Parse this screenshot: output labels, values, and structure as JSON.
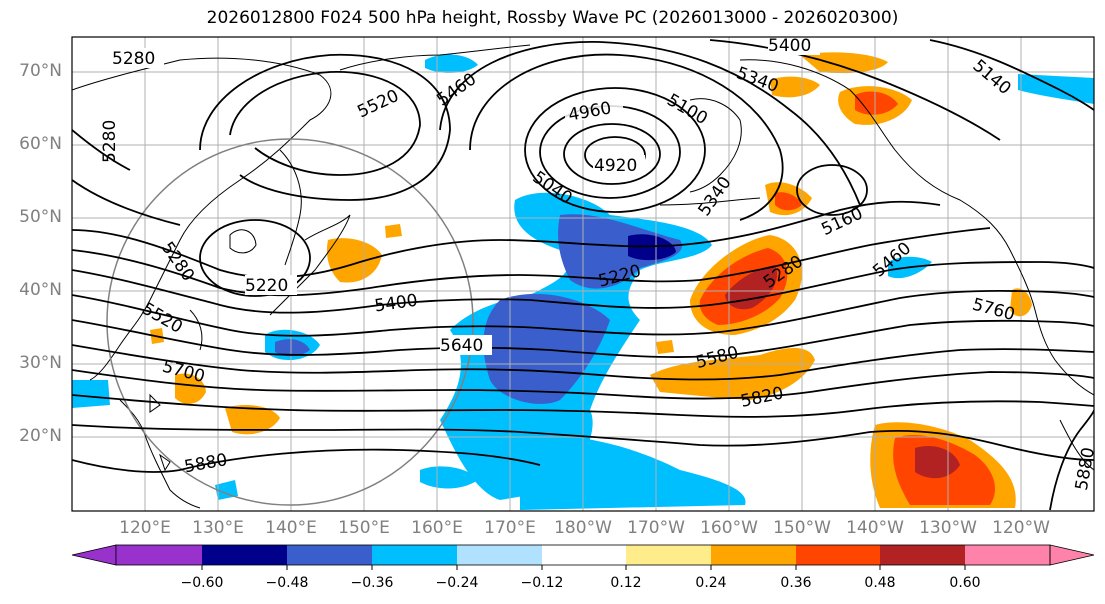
{
  "title": "2026012800 F024 500 hPa height, Rossby Wave PC (2026013000 - 2026020300)",
  "lat_labels": [
    "70°N",
    "60°N",
    "50°N",
    "40°N",
    "30°N",
    "20°N"
  ],
  "lon_labels": [
    "120°E",
    "130°E",
    "140°E",
    "150°E",
    "160°E",
    "170°E",
    "180°W",
    "170°W",
    "160°W",
    "150°W",
    "140°W",
    "130°W",
    "120°W"
  ],
  "contour_labels": [
    "5280",
    "5400",
    "5340",
    "5520",
    "5460",
    "4960",
    "5100",
    "4920",
    "5140",
    "5280",
    "5040",
    "5160",
    "5460",
    "5280",
    "5220",
    "5220",
    "5400",
    "5280",
    "5520",
    "5760",
    "5640",
    "5580",
    "5700",
    "5820",
    "5880",
    "5880",
    "5340"
  ],
  "colorbar": {
    "ticks": [
      "−0.60",
      "−0.48",
      "−0.36",
      "−0.24",
      "−0.12",
      "0.12",
      "0.24",
      "0.36",
      "0.48",
      "0.60"
    ],
    "colors": [
      "#9932cc",
      "#00008b",
      "#3a5fcd",
      "#00bfff",
      "#b0e2ff",
      "#ffffff",
      "#ffec8b",
      "#ffa500",
      "#ff4500",
      "#b22222",
      "#ff82ab"
    ]
  }
}
